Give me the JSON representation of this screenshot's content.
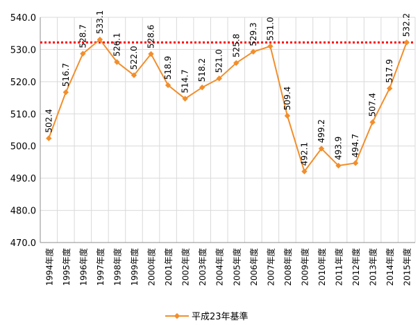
{
  "chart_data": {
    "type": "line",
    "categories": [
      "1994年度",
      "1995年度",
      "1996年度",
      "1997年度",
      "1998年度",
      "1999年度",
      "2000年度",
      "2001年度",
      "2002年度",
      "2003年度",
      "2004年度",
      "2005年度",
      "2006年度",
      "2007年度",
      "2008年度",
      "2009年度",
      "2010年度",
      "2011年度",
      "2012年度",
      "2013年度",
      "2014年度",
      "2015年度"
    ],
    "series": [
      {
        "name": "平成23年基準",
        "values": [
          502.4,
          516.7,
          528.7,
          533.1,
          526.1,
          522.0,
          528.6,
          518.9,
          514.7,
          518.2,
          521.0,
          525.8,
          529.3,
          531.0,
          509.4,
          492.1,
          499.2,
          493.9,
          494.7,
          507.4,
          517.9,
          532.2
        ],
        "labels": [
          "502.4",
          "516.7",
          "528.7",
          "533.1",
          "526.1",
          "522.0",
          "528.6",
          "518.9",
          "514.7",
          "518.2",
          "521.0",
          "525.8",
          "529.3",
          "531.0",
          "509.4",
          "492.1",
          "499.2",
          "493.9",
          "494.7",
          "507.4",
          "517.9",
          "532.2"
        ],
        "color": "#f28e2b"
      }
    ],
    "reference_line": {
      "value": 532.2,
      "color": "#ff0000",
      "style": "dotted"
    },
    "title": "",
    "xlabel": "",
    "ylabel": "",
    "ylim": [
      470,
      540
    ],
    "yticks": [
      "470.0",
      "480.0",
      "490.0",
      "500.0",
      "510.0",
      "520.0",
      "530.0",
      "540.0"
    ],
    "grid": true,
    "grid_color": "#d9d9d9",
    "legend_position": "bottom"
  }
}
